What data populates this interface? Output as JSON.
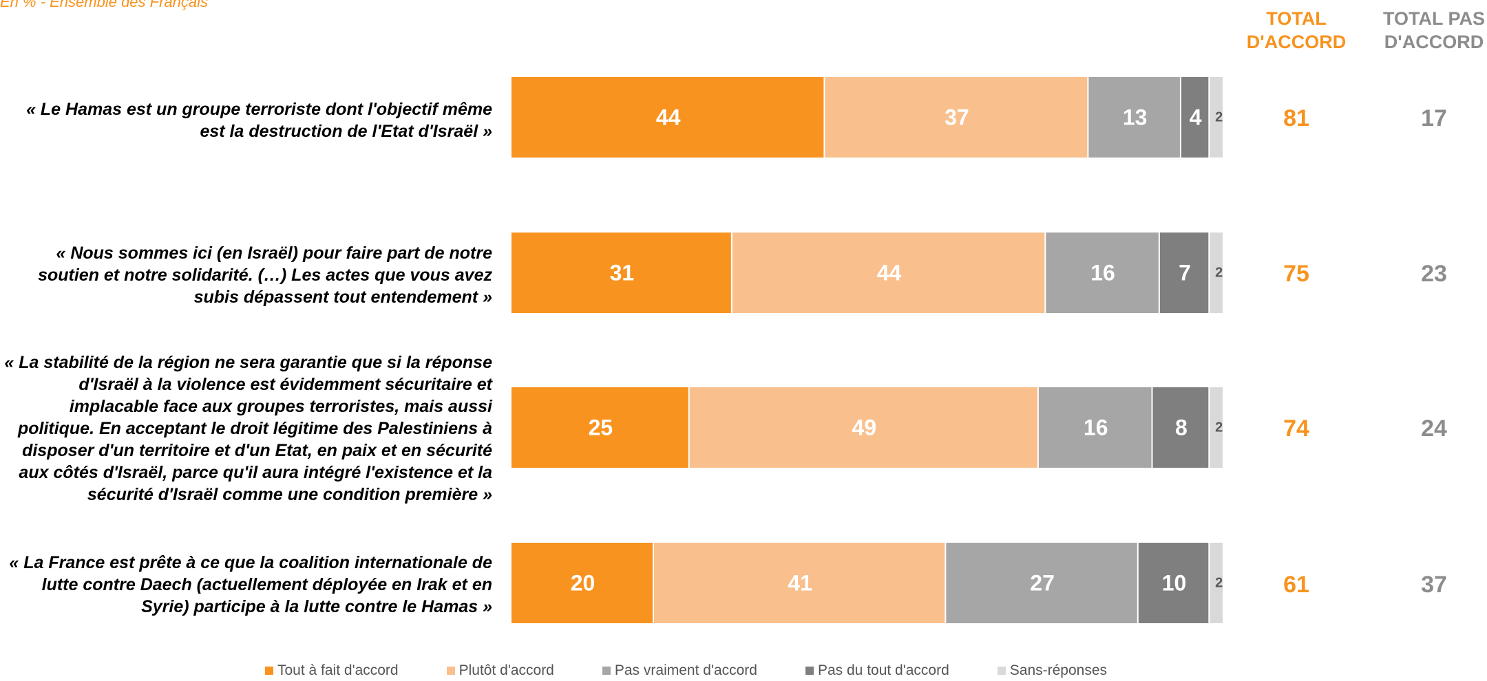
{
  "subtitle": "En % - Ensemble des Français",
  "headers": {
    "total_agree": "TOTAL\nD'ACCORD",
    "total_disagree": "TOTAL PAS\nD'ACCORD"
  },
  "colors": {
    "tout_a_fait": "#F7931E",
    "plutot": "#F9C08E",
    "pas_vraiment": "#A6A6A6",
    "pas_du_tout": "#7F7F7F",
    "sans_reponse": "#D9D9D9",
    "total_agree": "#F7931E",
    "total_disagree": "#8C8C8C"
  },
  "chart_data": {
    "type": "bar",
    "orientation": "horizontal",
    "stacked": true,
    "xlim": [
      0,
      100
    ],
    "categories": [
      "« Le Hamas est un groupe terroriste dont l'objectif même est la destruction de l'Etat d'Israël »",
      "« Nous sommes ici (en Israël) pour faire part de notre soutien et notre solidarité. (…) Les actes que vous avez subis dépassent tout entendement »",
      "« La stabilité de la région ne sera garantie que si la réponse d'Israël à la violence est évidemment sécuritaire et implacable face aux groupes terroristes, mais aussi politique. En acceptant le droit légitime des Palestiniens à disposer d'un territoire et d'un Etat, en paix et en sécurité aux côtés d'Israël, parce qu'il aura intégré l'existence et la sécurité d'Israël comme une condition première »",
      "« La France est prête à ce que la coalition internationale de lutte contre Daech (actuellement déployée en Irak et en Syrie) participe à la lutte contre le Hamas »"
    ],
    "series": [
      {
        "name": "Tout à fait d'accord",
        "values": [
          44,
          31,
          25,
          20
        ]
      },
      {
        "name": "Plutôt d'accord",
        "values": [
          37,
          44,
          49,
          41
        ]
      },
      {
        "name": "Pas vraiment d'accord",
        "values": [
          13,
          16,
          16,
          27
        ]
      },
      {
        "name": "Pas du tout d'accord",
        "values": [
          4,
          7,
          8,
          10
        ]
      },
      {
        "name": "Sans-réponses",
        "values": [
          2,
          2,
          2,
          2
        ]
      }
    ],
    "total_agree": [
      81,
      75,
      74,
      61
    ],
    "total_disagree": [
      17,
      23,
      24,
      37
    ],
    "legend_position": "bottom"
  }
}
